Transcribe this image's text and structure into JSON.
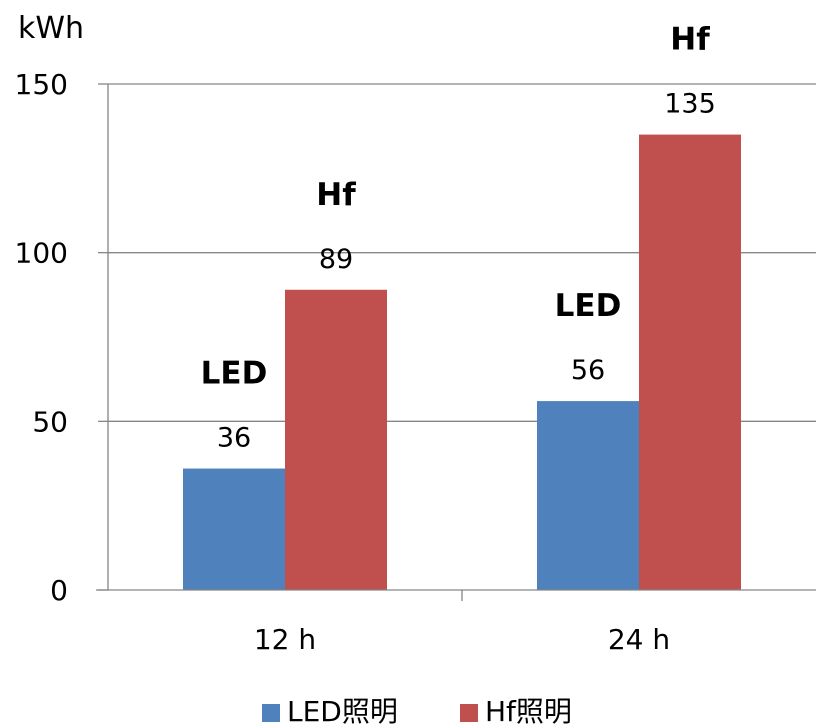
{
  "chart_data": {
    "type": "bar",
    "ylabel": "kWh",
    "ylim": [
      0,
      150
    ],
    "yticks": [
      0,
      50,
      100,
      150
    ],
    "grid": true,
    "legend_position": "bottom",
    "categories": [
      "12 h",
      "24 h"
    ],
    "series": [
      {
        "name": "LED照明",
        "color": "#4f81bd",
        "values": [
          36,
          56
        ],
        "tag": "LED"
      },
      {
        "name": "Hf照明",
        "color": "#c0504d",
        "values": [
          89,
          135
        ],
        "tag": "Hf"
      }
    ]
  }
}
